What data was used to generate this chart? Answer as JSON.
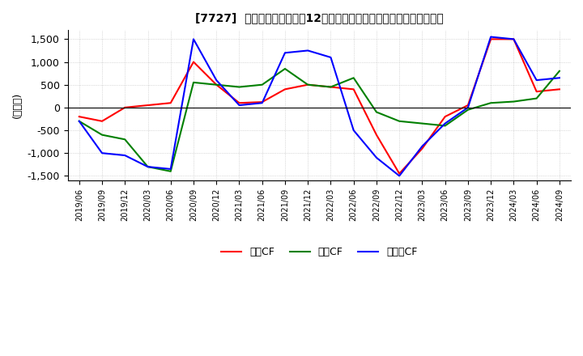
{
  "title": "[7727]  キャッシュフローの12か月移動合計の対前年同期増減額の推移",
  "ylabel": "(百万円)",
  "ylim": [
    -1600,
    1700
  ],
  "yticks": [
    -1500,
    -1000,
    -500,
    0,
    500,
    1000,
    1500
  ],
  "legend_labels": [
    "営業CF",
    "投資CF",
    "フリーCF"
  ],
  "colors": [
    "#ff0000",
    "#008000",
    "#0000ff"
  ],
  "dates": [
    "2019/06",
    "2019/09",
    "2019/12",
    "2020/03",
    "2020/06",
    "2020/09",
    "2020/12",
    "2021/03",
    "2021/06",
    "2021/09",
    "2021/12",
    "2022/03",
    "2022/06",
    "2022/09",
    "2022/12",
    "2023/03",
    "2023/06",
    "2023/09",
    "2023/12",
    "2024/03",
    "2024/06",
    "2024/09"
  ],
  "operating_cf": [
    -200,
    -300,
    0,
    50,
    100,
    1000,
    500,
    100,
    120,
    400,
    500,
    450,
    400,
    -600,
    -1450,
    -900,
    -200,
    50,
    1500,
    1500,
    350,
    400
  ],
  "investing_cf": [
    -300,
    -600,
    -700,
    -1300,
    -1400,
    550,
    500,
    450,
    500,
    850,
    500,
    450,
    650,
    -100,
    -300,
    -350,
    -400,
    -50,
    100,
    130,
    200,
    800
  ],
  "free_cf": [
    -300,
    -1000,
    -1050,
    -1300,
    -1350,
    1500,
    600,
    50,
    100,
    1200,
    1250,
    1100,
    -500,
    -1100,
    -1500,
    -850,
    -350,
    0,
    1550,
    1500,
    600,
    650
  ],
  "background_color": "#ffffff",
  "grid_color": "#aaaaaa"
}
